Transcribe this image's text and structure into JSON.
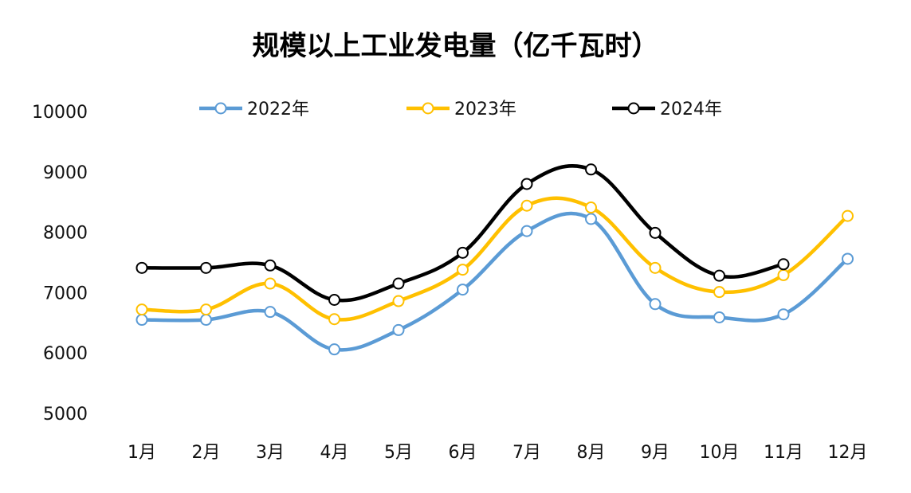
{
  "chart_data": {
    "type": "line",
    "title": "规模以上工业发电量（亿千瓦时）",
    "xlabel": "",
    "ylabel": "",
    "categories": [
      "1月",
      "2月",
      "3月",
      "4月",
      "5月",
      "6月",
      "7月",
      "8月",
      "9月",
      "10月",
      "11月",
      "12月"
    ],
    "yticks": [
      5000,
      6000,
      7000,
      8000,
      9000,
      10000
    ],
    "ylim": [
      5000,
      10000
    ],
    "grid": false,
    "legend_position": "top",
    "smooth": true,
    "series": [
      {
        "name": "2022年",
        "color": "#5B9BD5",
        "values": [
          6550,
          6550,
          6680,
          6060,
          6380,
          7050,
          8020,
          8220,
          6810,
          6590,
          6640,
          7560
        ]
      },
      {
        "name": "2023年",
        "color": "#FFC000",
        "values": [
          6720,
          6720,
          7150,
          6560,
          6860,
          7380,
          8440,
          8410,
          7410,
          7010,
          7290,
          8270
        ]
      },
      {
        "name": "2024年",
        "color": "#000000",
        "values": [
          7410,
          7410,
          7450,
          6880,
          7150,
          7660,
          8800,
          9040,
          7990,
          7280,
          7470,
          null
        ]
      }
    ]
  }
}
